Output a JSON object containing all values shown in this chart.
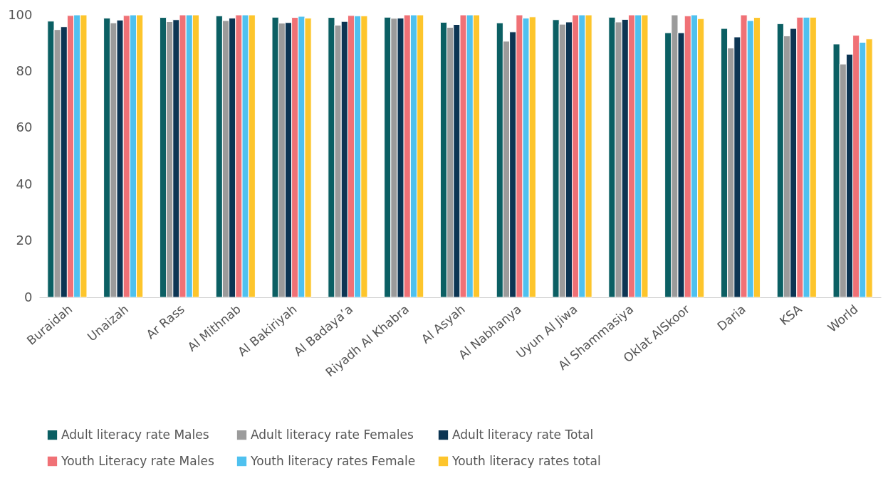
{
  "chart_data": {
    "type": "bar",
    "categories": [
      "Buraidah",
      "Unaizah",
      "Ar Rass",
      "Al Mithnab",
      "Al Bakiriyah",
      "Al Badaya’a",
      "Riyadh Al Khabra",
      "Al  Asyah",
      "Al Nabhanya",
      "Uyun Al Jiwa",
      "Al  Shammasiya",
      "Oklat AlSkoor",
      "Daria",
      "KSA",
      "World"
    ],
    "series": [
      {
        "name": "Adult literacy rate Males",
        "color": "#0b5f63",
        "values": [
          97.8,
          98.9,
          99.1,
          99.7,
          99.2,
          99.1,
          99.2,
          97.4,
          97.2,
          98.3,
          99.2,
          93.7,
          95.2,
          96.9,
          89.7
        ]
      },
      {
        "name": "Adult literacy rate Females",
        "color": "#9b9b9b",
        "values": [
          94.8,
          97.2,
          97.6,
          98.0,
          97.1,
          96.4,
          98.8,
          95.6,
          90.7,
          96.7,
          97.5,
          100,
          88.3,
          92.6,
          82.6
        ]
      },
      {
        "name": "Adult literacy rate Total",
        "color": "#0c3553",
        "values": [
          95.8,
          98.2,
          98.3,
          98.9,
          97.3,
          97.7,
          98.9,
          96.6,
          94.0,
          97.5,
          98.4,
          93.7,
          92.2,
          95.2,
          86.1
        ]
      },
      {
        "name": "Youth Literacy rate Males",
        "color": "#f07176",
        "values": [
          99.8,
          99.8,
          100,
          100,
          99.1,
          99.8,
          100,
          100,
          100,
          100,
          100,
          99.7,
          100,
          99.2,
          92.8
        ]
      },
      {
        "name": "Youth literacy rates Female",
        "color": "#4fc1ef",
        "values": [
          100,
          100,
          100,
          100,
          99.5,
          99.7,
          100,
          100,
          98.9,
          100,
          100,
          100,
          98.0,
          99.2,
          90.3
        ]
      },
      {
        "name": "Youth literacy rates total",
        "color": "#fdc52c",
        "values": [
          100,
          100,
          100,
          100,
          98.9,
          99.7,
          100,
          100,
          99.3,
          100,
          100,
          98.7,
          99.1,
          99.2,
          91.5
        ]
      }
    ],
    "ylim": [
      0,
      100
    ],
    "yticks": [
      0,
      20,
      40,
      60,
      80,
      100
    ],
    "grid": false,
    "legend": "bottom"
  }
}
